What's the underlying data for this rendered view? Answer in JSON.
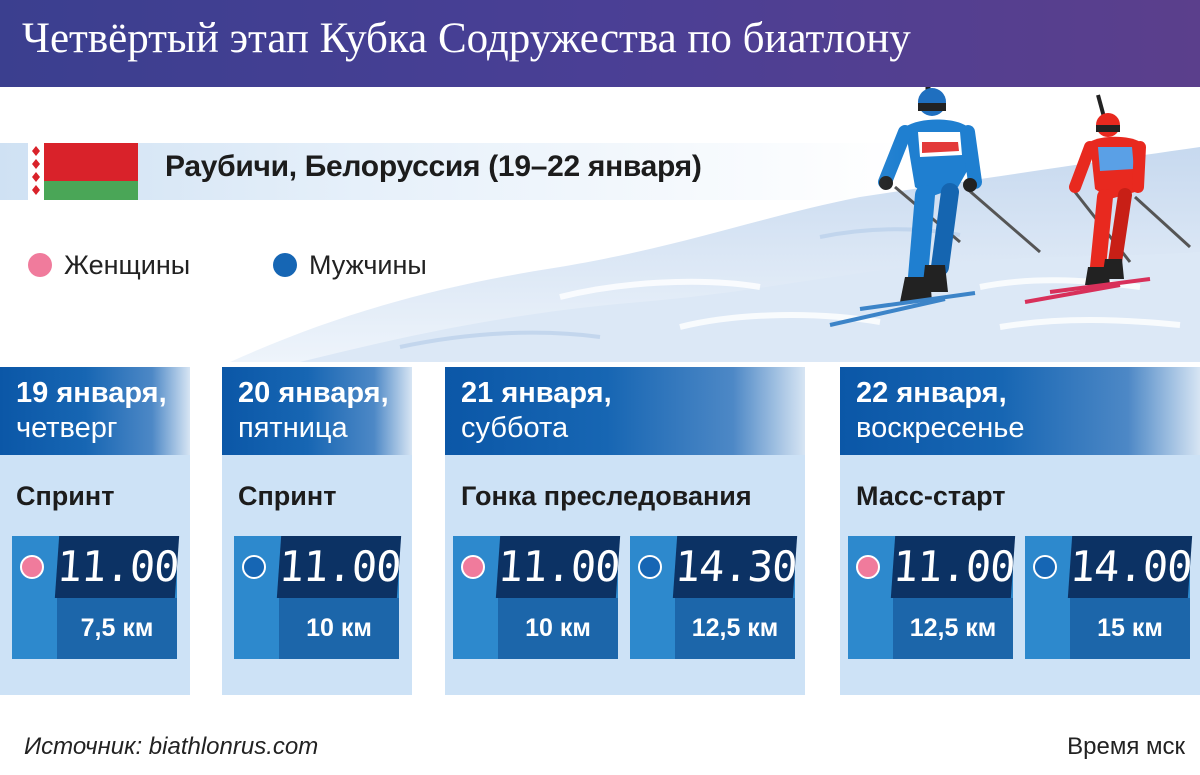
{
  "header": {
    "title": "Четвёртый этап Кубка Содружества по биатлону"
  },
  "location": {
    "text": "Раубичи, Белоруссия (19–22 января)"
  },
  "legend": {
    "women": {
      "label": "Женщины",
      "color": "#f07b9c"
    },
    "men": {
      "label": "Мужчины",
      "color": "#1666b4"
    }
  },
  "days": [
    {
      "date": "19 января,",
      "weekday": "четверг",
      "race": "Спринт",
      "events": [
        {
          "gender": "women",
          "time": "11.00",
          "distance": "7,5 км"
        }
      ]
    },
    {
      "date": "20 января,",
      "weekday": "пятница",
      "race": "Спринт",
      "events": [
        {
          "gender": "men",
          "time": "11.00",
          "distance": "10 км"
        }
      ]
    },
    {
      "date": "21 января,",
      "weekday": "суббота",
      "race": "Гонка преследования",
      "events": [
        {
          "gender": "women",
          "time": "11.00",
          "distance": "10 км"
        },
        {
          "gender": "men",
          "time": "14.30",
          "distance": "12,5 км"
        }
      ]
    },
    {
      "date": "22 января,",
      "weekday": "воскресенье",
      "race": "Масс-старт",
      "events": [
        {
          "gender": "women",
          "time": "11.00",
          "distance": "12,5 км"
        },
        {
          "gender": "men",
          "time": "14.00",
          "distance": "15 км"
        }
      ]
    }
  ],
  "footer": {
    "source": "Источник: biathlonrus.com",
    "timezone": "Время мск"
  },
  "colors": {
    "header_bg": "#453e93",
    "card_bg": "#cde2f6",
    "time_bg": "#0c3264",
    "dist_bg": "#1c66aa",
    "box_bg": "#2d89cd"
  }
}
